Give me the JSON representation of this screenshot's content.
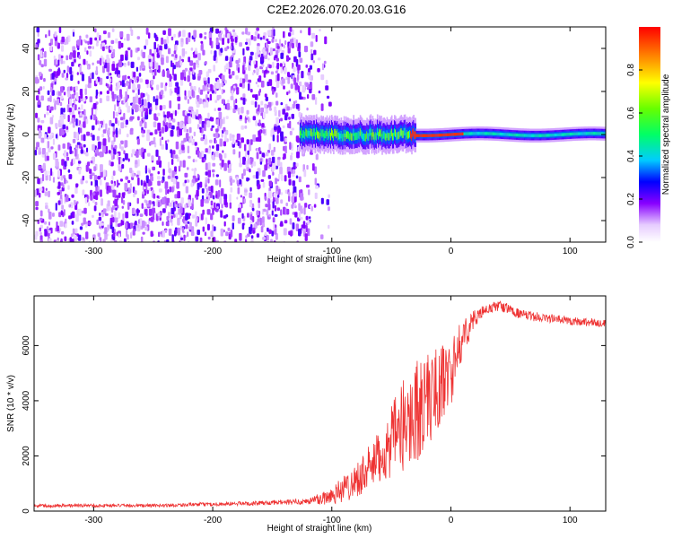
{
  "title": "C2E2.2026.070.20.03.G16",
  "chart_data": [
    {
      "type": "heatmap",
      "xlabel": "Height of straight line (km)",
      "ylabel": "Frequency (Hz)",
      "xlim": [
        -350,
        130
      ],
      "ylim": [
        -50,
        50
      ],
      "x_ticks": [
        -300,
        -200,
        -100,
        0,
        100
      ],
      "x_tick_labels": [
        "-300",
        "-200",
        "-100",
        "0",
        "100"
      ],
      "y_ticks": [
        -40,
        -20,
        0,
        20,
        40
      ],
      "y_tick_labels": [
        "-40",
        "-20",
        "0",
        "20",
        "40"
      ],
      "noise_region_x": [
        -350,
        -120
      ],
      "noise_fade_x": [
        -130,
        -100
      ],
      "signal_band": {
        "x_start": -127,
        "x_end": 130,
        "center_freq": 0,
        "noisy_halfwidth_hz": 5,
        "clean_halfwidth_hz": 2,
        "peak_x": [
          -35,
          10
        ]
      },
      "colorbar": {
        "label": "Normalized spectral amplitude",
        "range": [
          0,
          1
        ],
        "ticks": [
          0.0,
          0.2,
          0.4,
          0.6,
          0.8
        ],
        "tick_labels": [
          "0.0",
          "0.2",
          "0.4",
          "0.6",
          "0.8"
        ]
      }
    },
    {
      "type": "line",
      "xlabel": "Height of straight line (km)",
      "ylabel": "SNR (10 * v/v)",
      "xlim": [
        -350,
        130
      ],
      "ylim": [
        0,
        7800
      ],
      "x_ticks": [
        -300,
        -200,
        -100,
        0,
        100
      ],
      "x_tick_labels": [
        "-300",
        "-200",
        "-100",
        "0",
        "100"
      ],
      "y_ticks": [
        0,
        2000,
        4000,
        6000
      ],
      "y_tick_labels": [
        "0",
        "2000",
        "4000",
        "6000"
      ],
      "color": "#ee3333",
      "series": [
        {
          "name": "SNR",
          "x": [
            -350,
            -300,
            -250,
            -200,
            -150,
            -120,
            -105,
            -90,
            -75,
            -60,
            -50,
            -40,
            -30,
            -20,
            -10,
            0,
            10,
            20,
            30,
            40,
            50,
            60,
            80,
            100,
            130
          ],
          "values": [
            200,
            200,
            200,
            250,
            300,
            350,
            500,
            800,
            1300,
            1900,
            2500,
            3100,
            3600,
            4000,
            4500,
            5000,
            6300,
            7000,
            7300,
            7450,
            7300,
            7100,
            7000,
            6900,
            6800
          ],
          "spread": [
            60,
            60,
            60,
            70,
            80,
            120,
            300,
            500,
            700,
            1000,
            1300,
            1700,
            1900,
            1800,
            1500,
            1200,
            700,
            300,
            200,
            200,
            180,
            180,
            160,
            160,
            150
          ]
        }
      ]
    }
  ]
}
